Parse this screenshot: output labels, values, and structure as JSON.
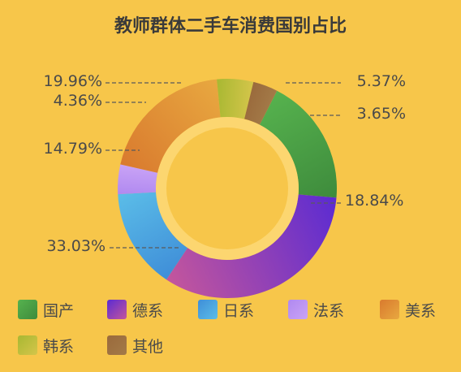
{
  "chart_data": {
    "type": "pie",
    "variant": "donut",
    "title": "教师群体二手车消费国别占比",
    "slices": [
      {
        "name": "国产",
        "value": 18.84,
        "label": "18.84%",
        "color": "#56B24E",
        "color2": "#3E8B3C"
      },
      {
        "name": "德系",
        "value": 33.03,
        "label": "33.03%",
        "color": "#5B2BD2",
        "color2": "#C4569C"
      },
      {
        "name": "日系",
        "value": 14.79,
        "label": "14.79%",
        "color": "#3F8ED8",
        "color2": "#5BBDE8"
      },
      {
        "name": "法系",
        "value": 4.36,
        "label": "4.36%",
        "color": "#B089F0",
        "color2": "#C9A3F6"
      },
      {
        "name": "美系",
        "value": 19.96,
        "label": "19.96%",
        "color": "#D97A2E",
        "color2": "#E8A840"
      },
      {
        "name": "韩系",
        "value": 5.37,
        "label": "5.37%",
        "color": "#A8B832",
        "color2": "#D4C54A"
      },
      {
        "name": "其他",
        "value": 3.65,
        "label": "3.65%",
        "color": "#9A6A3C",
        "color2": "#A37A48"
      }
    ],
    "legend_position": "bottom",
    "background_color": "#F7C64A",
    "inner_ring_color": "#FCD670"
  }
}
